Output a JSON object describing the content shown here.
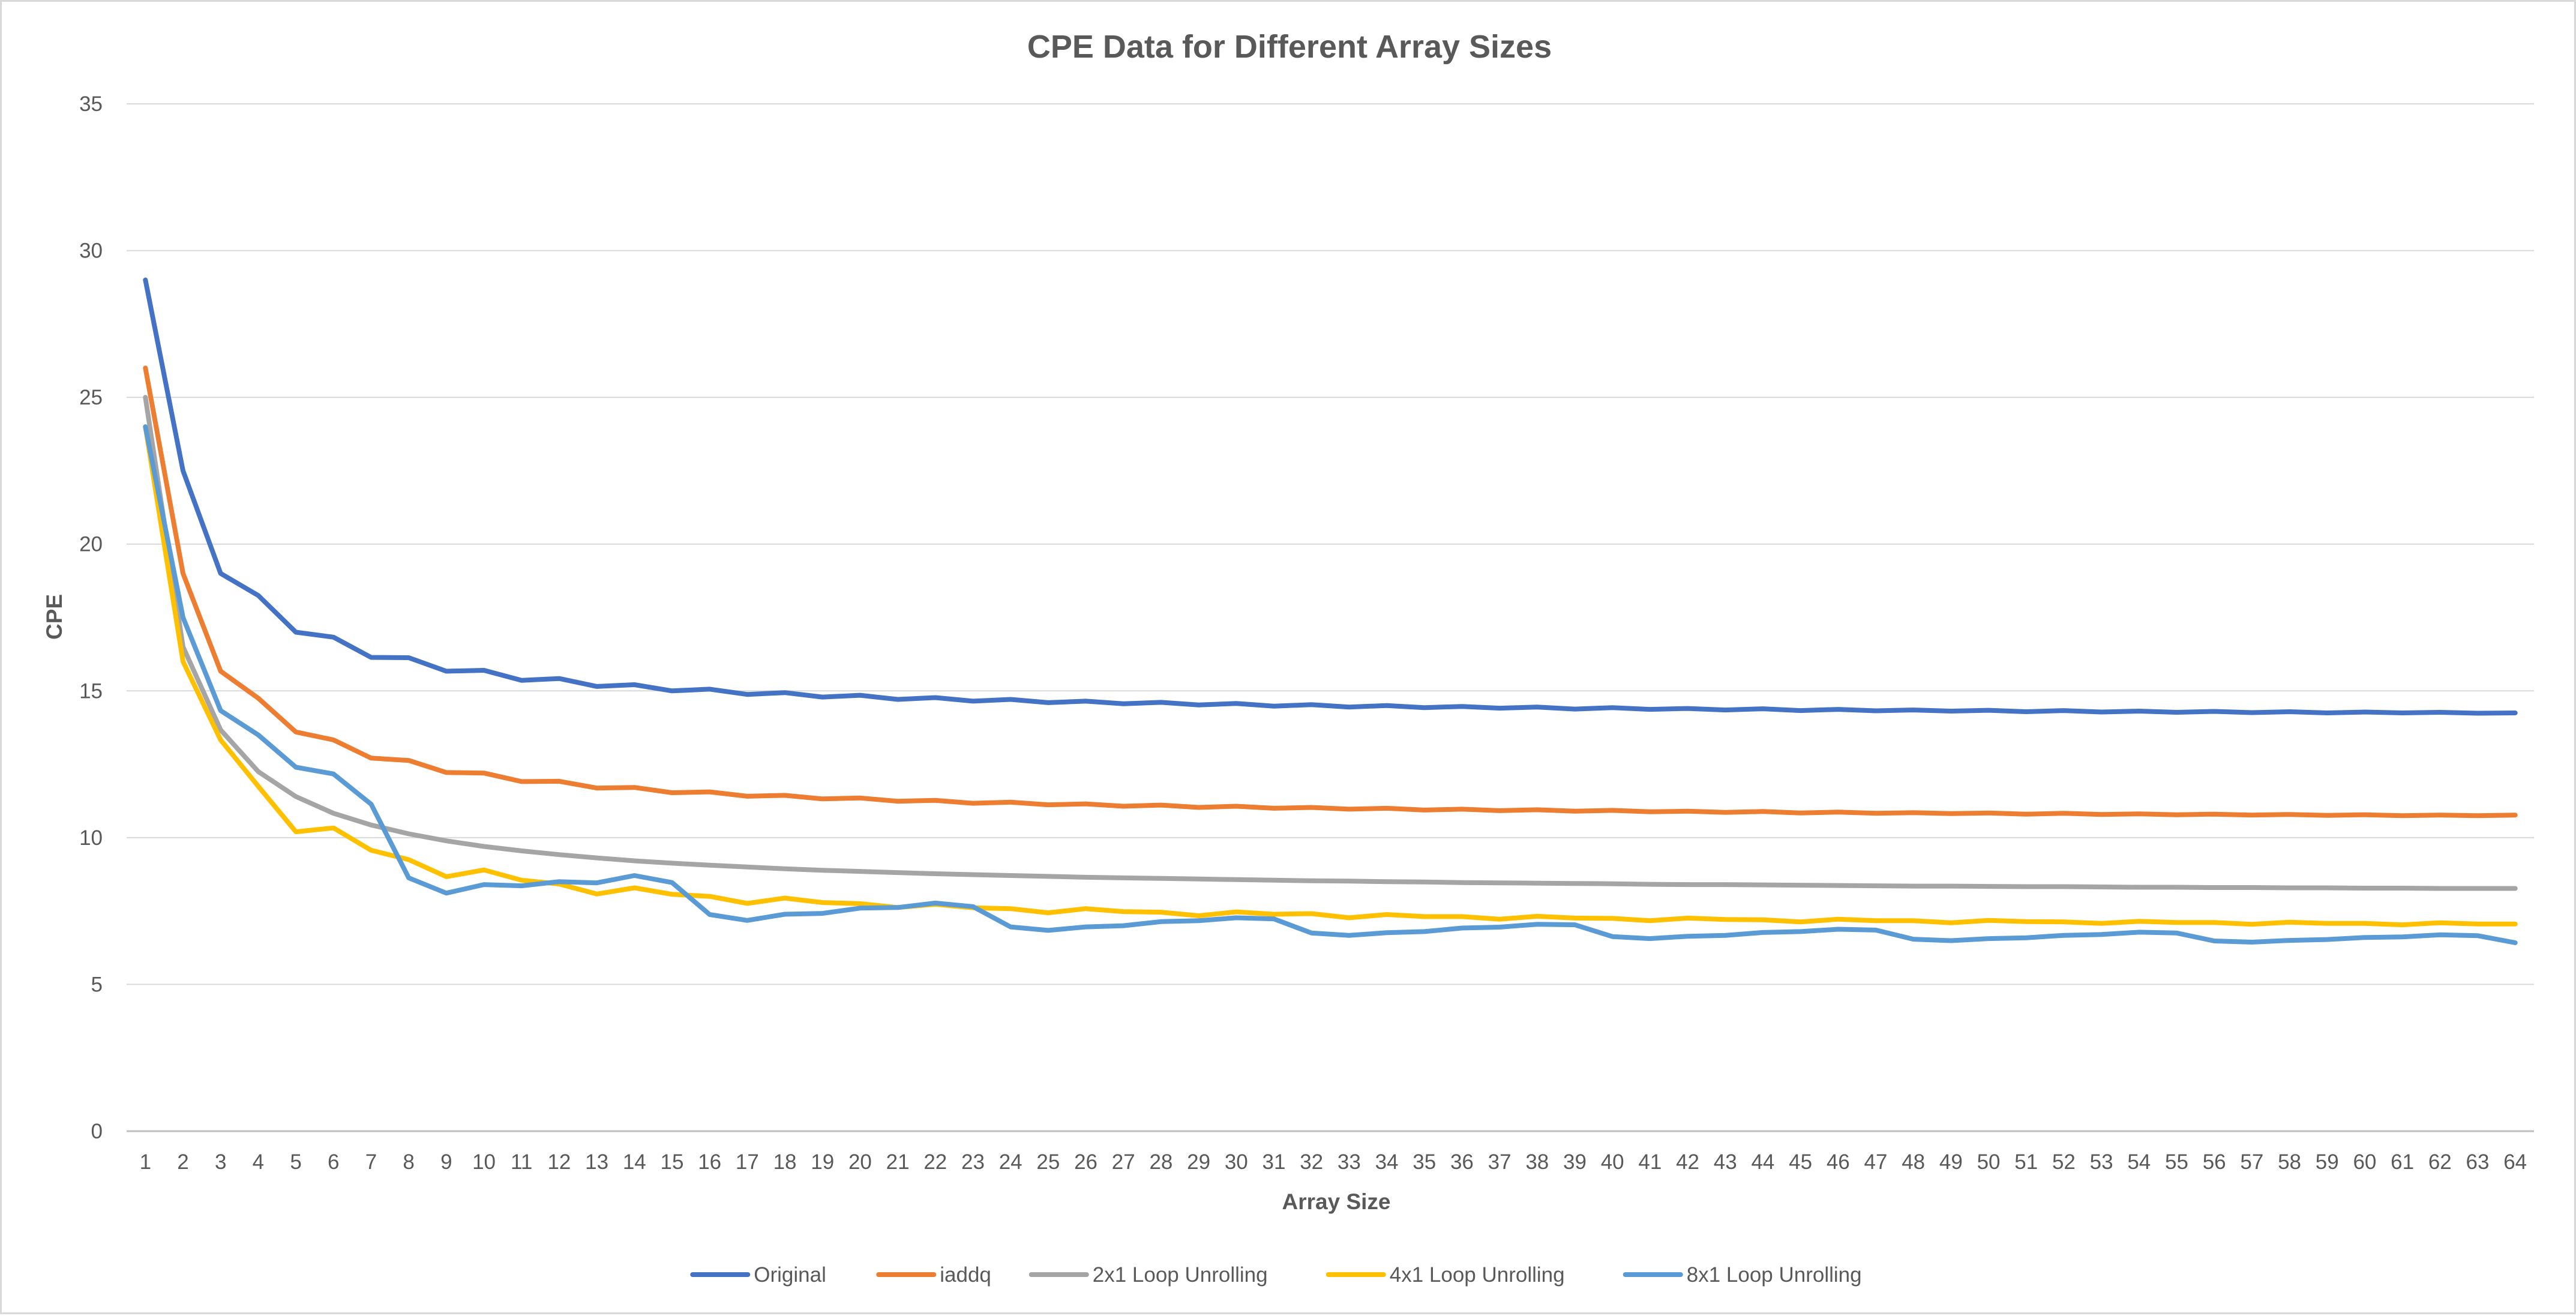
{
  "chart_data": {
    "type": "line",
    "title": "CPE Data for Different Array Sizes",
    "xlabel": "Array Size",
    "ylabel": "CPE",
    "ylim": [
      0,
      35
    ],
    "yticks": [
      0,
      5,
      10,
      15,
      20,
      25,
      30,
      35
    ],
    "grid": "horizontal",
    "legend_position": "bottom",
    "x": [
      1,
      2,
      3,
      4,
      5,
      6,
      7,
      8,
      9,
      10,
      11,
      12,
      13,
      14,
      15,
      16,
      17,
      18,
      19,
      20,
      21,
      22,
      23,
      24,
      25,
      26,
      27,
      28,
      29,
      30,
      31,
      32,
      33,
      34,
      35,
      36,
      37,
      38,
      39,
      40,
      41,
      42,
      43,
      44,
      45,
      46,
      47,
      48,
      49,
      50,
      51,
      52,
      53,
      54,
      55,
      56,
      57,
      58,
      59,
      60,
      61,
      62,
      63,
      64
    ],
    "series": [
      {
        "name": "Original",
        "color": "#4472c4",
        "values": [
          29.0,
          22.5,
          19.0,
          18.25,
          17.0,
          16.83,
          16.14,
          16.13,
          15.67,
          15.7,
          15.36,
          15.42,
          15.15,
          15.21,
          15.0,
          15.06,
          14.88,
          14.94,
          14.79,
          14.85,
          14.71,
          14.77,
          14.65,
          14.71,
          14.6,
          14.65,
          14.56,
          14.61,
          14.52,
          14.57,
          14.48,
          14.53,
          14.45,
          14.5,
          14.43,
          14.47,
          14.41,
          14.45,
          14.38,
          14.43,
          14.37,
          14.4,
          14.35,
          14.39,
          14.33,
          14.37,
          14.32,
          14.35,
          14.31,
          14.34,
          14.29,
          14.33,
          14.28,
          14.31,
          14.27,
          14.3,
          14.26,
          14.29,
          14.25,
          14.28,
          14.25,
          14.27,
          14.24,
          14.25
        ]
      },
      {
        "name": "iaddq",
        "color": "#ed7d31",
        "values": [
          26.0,
          19.0,
          15.67,
          14.75,
          13.6,
          13.33,
          12.71,
          12.63,
          12.22,
          12.2,
          11.91,
          11.92,
          11.69,
          11.71,
          11.53,
          11.56,
          11.41,
          11.44,
          11.32,
          11.35,
          11.24,
          11.27,
          11.17,
          11.21,
          11.12,
          11.15,
          11.07,
          11.11,
          11.03,
          11.07,
          11.0,
          11.03,
          10.97,
          11.0,
          10.94,
          10.97,
          10.92,
          10.95,
          10.9,
          10.93,
          10.88,
          10.9,
          10.86,
          10.89,
          10.84,
          10.87,
          10.83,
          10.85,
          10.82,
          10.84,
          10.8,
          10.83,
          10.79,
          10.81,
          10.78,
          10.8,
          10.77,
          10.79,
          10.76,
          10.78,
          10.75,
          10.77,
          10.75,
          10.77
        ]
      },
      {
        "name": "2x1 Loop Unrolling",
        "color": "#a5a5a5",
        "values": [
          25.0,
          16.5,
          13.67,
          12.25,
          11.4,
          10.83,
          10.43,
          10.13,
          9.89,
          9.7,
          9.55,
          9.42,
          9.31,
          9.21,
          9.13,
          9.06,
          9.0,
          8.94,
          8.89,
          8.85,
          8.81,
          8.77,
          8.74,
          8.71,
          8.68,
          8.65,
          8.63,
          8.61,
          8.59,
          8.57,
          8.55,
          8.53,
          8.52,
          8.5,
          8.49,
          8.47,
          8.46,
          8.45,
          8.44,
          8.43,
          8.41,
          8.4,
          8.4,
          8.39,
          8.38,
          8.37,
          8.36,
          8.35,
          8.35,
          8.34,
          8.33,
          8.33,
          8.32,
          8.31,
          8.31,
          8.3,
          8.3,
          8.29,
          8.29,
          8.28,
          8.28,
          8.27,
          8.27,
          8.27
        ]
      },
      {
        "name": "4x1 Loop Unrolling",
        "color": "#ffc000",
        "values": [
          24.0,
          16.0,
          13.33,
          11.75,
          10.2,
          10.33,
          9.57,
          9.25,
          8.67,
          8.9,
          8.55,
          8.42,
          8.08,
          8.29,
          8.07,
          8.0,
          7.76,
          7.94,
          7.79,
          7.75,
          7.62,
          7.73,
          7.61,
          7.58,
          7.44,
          7.58,
          7.48,
          7.46,
          7.34,
          7.47,
          7.39,
          7.41,
          7.27,
          7.38,
          7.31,
          7.31,
          7.22,
          7.32,
          7.26,
          7.25,
          7.17,
          7.26,
          7.21,
          7.2,
          7.13,
          7.22,
          7.17,
          7.17,
          7.1,
          7.18,
          7.14,
          7.13,
          7.08,
          7.15,
          7.11,
          7.11,
          7.05,
          7.12,
          7.08,
          7.08,
          7.03,
          7.1,
          7.06,
          7.06
        ]
      },
      {
        "name": "8x1 Loop Unrolling",
        "color": "#5b9bd5",
        "values": [
          24.0,
          17.5,
          14.33,
          13.5,
          12.4,
          12.17,
          11.14,
          8.63,
          8.11,
          8.4,
          8.36,
          8.5,
          8.46,
          8.71,
          8.47,
          7.38,
          7.18,
          7.39,
          7.42,
          7.6,
          7.62,
          7.77,
          7.65,
          6.96,
          6.84,
          6.96,
          7.0,
          7.14,
          7.17,
          7.27,
          7.23,
          6.75,
          6.67,
          6.76,
          6.8,
          6.92,
          6.95,
          7.05,
          7.03,
          6.63,
          6.56,
          6.64,
          6.67,
          6.77,
          6.8,
          6.88,
          6.85,
          6.54,
          6.49,
          6.56,
          6.59,
          6.67,
          6.7,
          6.78,
          6.75,
          6.48,
          6.44,
          6.5,
          6.53,
          6.6,
          6.62,
          6.69,
          6.66,
          6.42
        ]
      }
    ]
  }
}
